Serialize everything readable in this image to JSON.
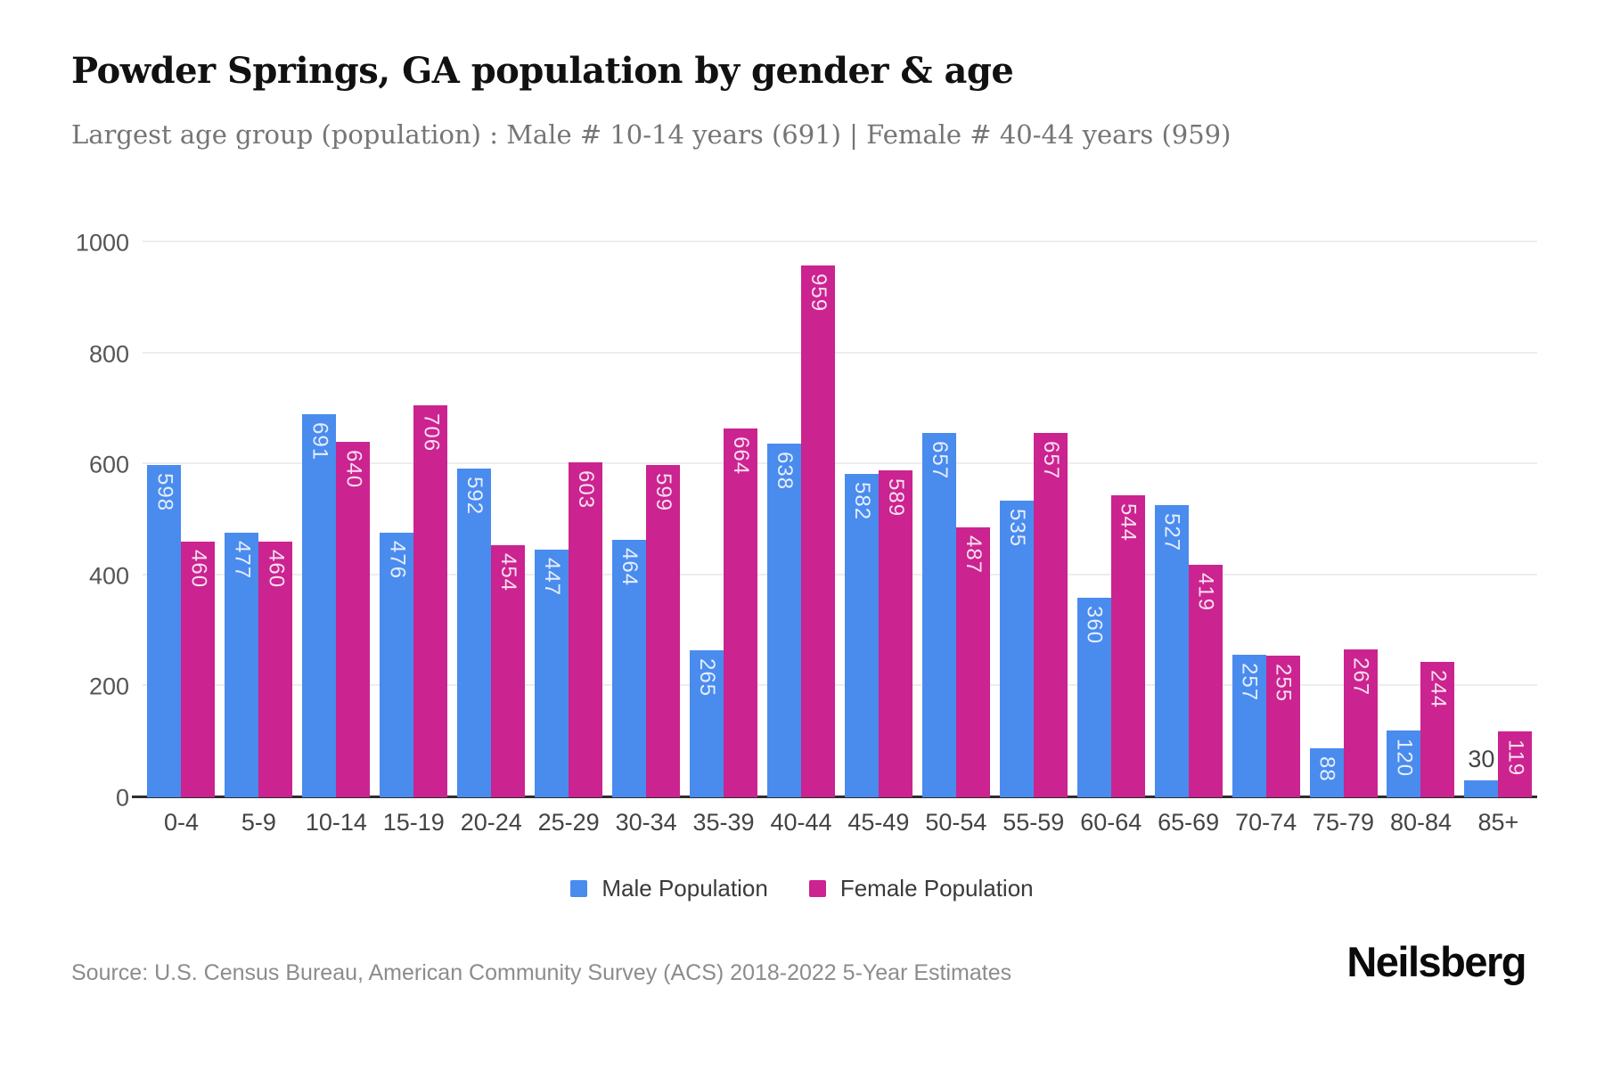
{
  "header": {
    "title": "Powder Springs, GA population by gender & age",
    "subtitle": "Largest age group (population) : Male # 10-14 years (691) | Female # 40-44 years (959)"
  },
  "chart_data": {
    "type": "bar",
    "categories": [
      "0-4",
      "5-9",
      "10-14",
      "15-19",
      "20-24",
      "25-29",
      "30-34",
      "35-39",
      "40-44",
      "45-49",
      "50-54",
      "55-59",
      "60-64",
      "65-69",
      "70-74",
      "75-79",
      "80-84",
      "85+"
    ],
    "series": [
      {
        "name": "Male Population",
        "color": "#4a8bee",
        "values": [
          598,
          477,
          691,
          476,
          592,
          447,
          464,
          265,
          638,
          582,
          657,
          535,
          360,
          527,
          257,
          88,
          120,
          30
        ]
      },
      {
        "name": "Female Population",
        "color": "#cb2390",
        "values": [
          460,
          460,
          640,
          706,
          454,
          603,
          599,
          664,
          959,
          589,
          487,
          657,
          544,
          419,
          255,
          267,
          244,
          119
        ]
      }
    ],
    "title": "Powder Springs, GA population by gender & age",
    "xlabel": "",
    "ylabel": "",
    "ylim": [
      0,
      1000
    ],
    "yticks": [
      0,
      200,
      400,
      600,
      800,
      1000
    ],
    "grid": true,
    "legend_position": "bottom",
    "value_labels": "rotated, white, inside bar top; placed above bar in dark gray when bar too short"
  },
  "colors": {
    "male": "#4a8bee",
    "female": "#cb2390",
    "grid": "#ededed",
    "axis": "#2d2d2d",
    "tick_text": "#555555",
    "x_label_text": "#444444",
    "title_text": "#111111",
    "subtitle_text": "#757575",
    "source_text": "#8c8c8c"
  },
  "legend": {
    "items": [
      {
        "label": "Male Population"
      },
      {
        "label": "Female Population"
      }
    ]
  },
  "footer": {
    "source": "Source: U.S. Census Bureau, American Community Survey (ACS) 2018-2022 5-Year Estimates",
    "brand": "Neilsberg"
  }
}
